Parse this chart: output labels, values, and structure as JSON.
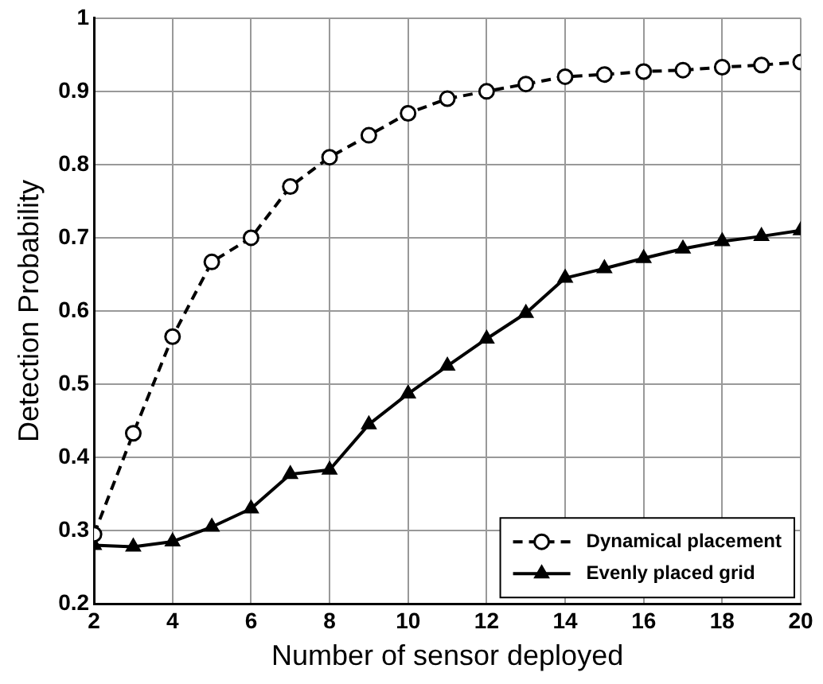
{
  "chart_data": {
    "type": "line",
    "xlabel": "Number of sensor deployed",
    "ylabel": "Detection Probability",
    "x": [
      2,
      3,
      4,
      5,
      6,
      7,
      8,
      9,
      10,
      11,
      12,
      13,
      14,
      15,
      16,
      17,
      18,
      19,
      20
    ],
    "series": [
      {
        "name": "Dynamical placement",
        "color": "#000000",
        "marker": "circle",
        "line_style": "dashed",
        "values": [
          0.295,
          0.433,
          0.565,
          0.667,
          0.7,
          0.77,
          0.81,
          0.84,
          0.87,
          0.89,
          0.9,
          0.91,
          0.92,
          0.923,
          0.927,
          0.929,
          0.933,
          0.936,
          0.94
        ]
      },
      {
        "name": "Evenly placed grid",
        "color": "#000000",
        "marker": "triangle",
        "line_style": "solid",
        "values": [
          0.28,
          0.278,
          0.285,
          0.305,
          0.33,
          0.377,
          0.383,
          0.445,
          0.487,
          0.525,
          0.562,
          0.597,
          0.645,
          0.658,
          0.672,
          0.685,
          0.695,
          0.702,
          0.71
        ]
      }
    ],
    "xlim": [
      2,
      20
    ],
    "xticks": [
      2,
      4,
      6,
      8,
      10,
      12,
      14,
      16,
      18,
      20
    ],
    "ylim": [
      0.2,
      1
    ],
    "yticks": [
      0.2,
      0.3,
      0.4,
      0.5,
      0.6,
      0.7,
      0.8,
      0.9,
      1
    ],
    "grid": true,
    "legend": "bottom right"
  }
}
